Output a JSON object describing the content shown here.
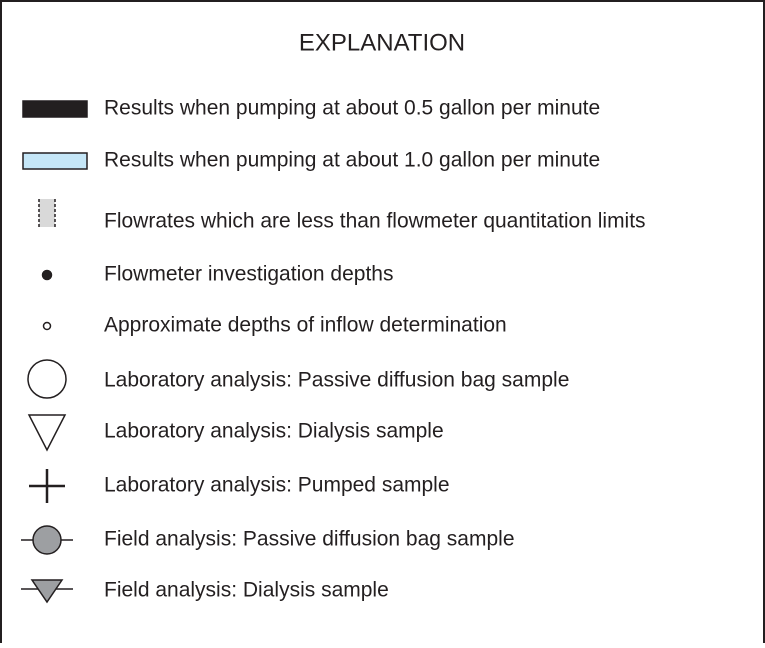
{
  "title": "EXPLANATION",
  "items": [
    {
      "label": "Results when pumping at about 0.5 gallon per minute"
    },
    {
      "label": "Results when pumping at about 1.0 gallon per minute"
    },
    {
      "label": "Flowrates which are less than flowmeter quantitation limits"
    },
    {
      "label": "Flowmeter investigation depths"
    },
    {
      "label": "Approximate depths of inflow determination"
    },
    {
      "label": "Laboratory analysis: Passive diffusion bag sample"
    },
    {
      "label": "Laboratory analysis: Dialysis sample"
    },
    {
      "label": "Laboratory analysis: Pumped sample"
    },
    {
      "label": "Field analysis: Passive diffusion bag sample"
    },
    {
      "label": "Field analysis: Dialysis sample"
    }
  ]
}
